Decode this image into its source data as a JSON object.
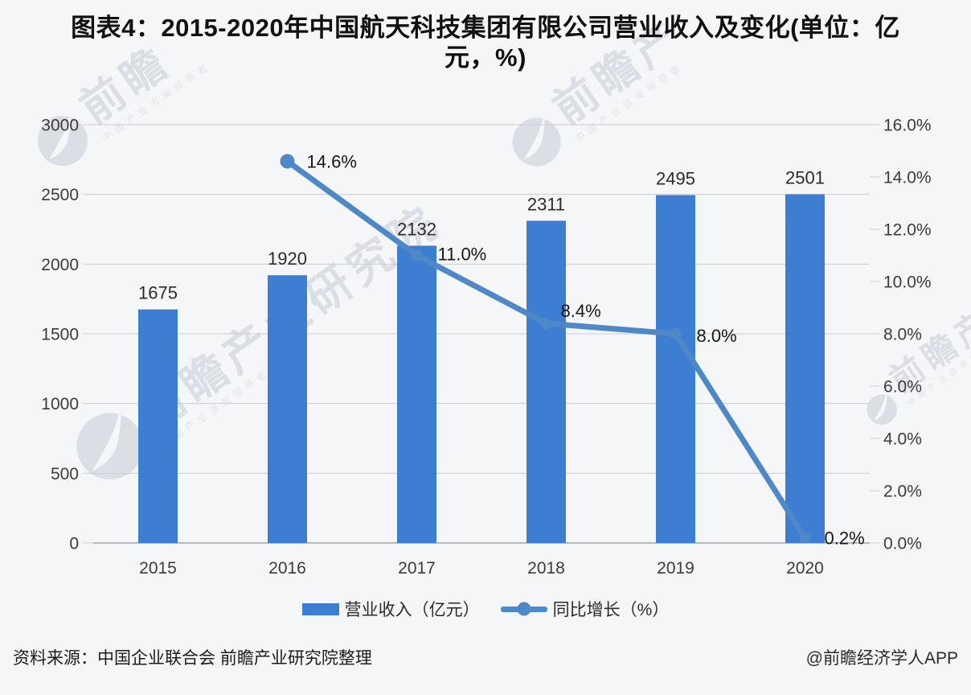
{
  "title": {
    "line1": "图表4：2015-2020年中国航天科技集团有限公司营业收入及变化(单位：亿",
    "line2": "元，%)",
    "full": "图表4：2015-2020年中国航天科技集团有限公司营业收入及变化(单位：亿元，%)"
  },
  "chart_data": {
    "type": "bar",
    "combo": "bar+line",
    "categories": [
      "2015",
      "2016",
      "2017",
      "2018",
      "2019",
      "2020"
    ],
    "series": [
      {
        "name": "营业收入（亿元）",
        "type": "bar",
        "axis": "left",
        "color": "#3d7dd2",
        "values": [
          1675,
          1920,
          2132,
          2311,
          2495,
          2501
        ],
        "data_labels": [
          "1675",
          "1920",
          "2132",
          "2311",
          "2495",
          "2501"
        ]
      },
      {
        "name": "同比增长（%）",
        "type": "line",
        "axis": "right",
        "color": "#4f88c7",
        "values": [
          null,
          14.6,
          11.0,
          8.4,
          8.0,
          0.2
        ],
        "data_labels": [
          "",
          "14.6%",
          "11.0%",
          "8.4%",
          "8.0%",
          "0.2%"
        ]
      }
    ],
    "left_axis": {
      "min": 0,
      "max": 3000,
      "step": 500,
      "tick_labels": [
        "3000",
        "2500",
        "2000",
        "1500",
        "1000",
        "500",
        "0"
      ]
    },
    "right_axis": {
      "min": 0,
      "max": 16,
      "step": 2,
      "tick_labels": [
        "16.0%",
        "14.0%",
        "12.0%",
        "10.0%",
        "8.0%",
        "6.0%",
        "4.0%",
        "2.0%",
        "0.0%"
      ]
    },
    "grid": true,
    "legend_position": "bottom"
  },
  "legend": {
    "items": [
      {
        "label": "营业收入（亿元）",
        "swatch": "bar"
      },
      {
        "label": "同比增长（%）",
        "swatch": "line"
      }
    ]
  },
  "footer": {
    "source": "资料来源：中国企业联合会 前瞻产业研究院整理",
    "credit": "@前瞻经济学人APP"
  },
  "watermark": {
    "brand": "前瞻",
    "brand_mid": "前瞻产",
    "brand_long": "前瞻产业研究院",
    "slogan": "中国产业咨询领导者"
  },
  "colors": {
    "bar": "#3d7dd2",
    "line": "#4f88c7",
    "grid": "#c9cdd3",
    "axis": "#a0a6ae",
    "tick_text": "#3b3b3b",
    "value_text": "#2b2b2b",
    "background": "#f5f6f8"
  }
}
